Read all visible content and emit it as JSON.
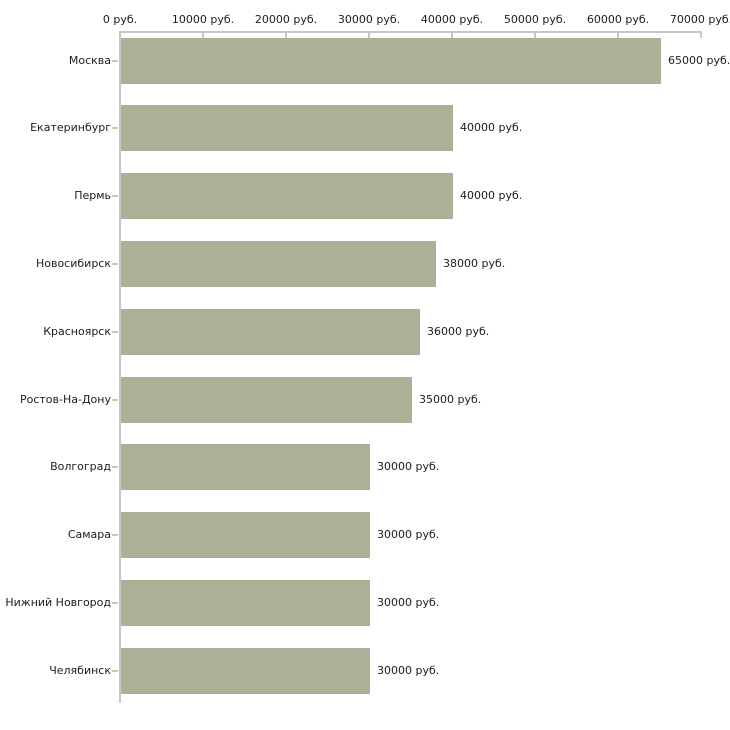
{
  "chart_data": {
    "type": "bar",
    "orientation": "horizontal",
    "categories": [
      "Москва",
      "Екатеринбург",
      "Пермь",
      "Новосибирск",
      "Красноярск",
      "Ростов-На-Дону",
      "Волгоград",
      "Самара",
      "Нижний Новгород",
      "Челябинск"
    ],
    "values": [
      65000,
      40000,
      40000,
      38000,
      36000,
      35000,
      30000,
      30000,
      30000,
      30000
    ],
    "value_labels": [
      "65000 руб.",
      "40000 руб.",
      "40000 руб.",
      "38000 руб.",
      "36000 руб.",
      "35000 руб.",
      "30000 руб.",
      "30000 руб.",
      "30000 руб.",
      "30000 руб."
    ],
    "x_axis": {
      "position": "top",
      "min": 0,
      "max": 70000,
      "ticks": [
        0,
        10000,
        20000,
        30000,
        40000,
        50000,
        60000,
        70000
      ],
      "tick_labels": [
        "0 руб.",
        "10000 руб.",
        "20000 руб.",
        "30000 руб.",
        "40000 руб.",
        "50000 руб.",
        "60000 руб.",
        "70000 руб."
      ]
    },
    "unit": "руб.",
    "grid": false,
    "legend": false,
    "colors": {
      "bar": "#abb096",
      "axis_line": "#c6c6c6",
      "tick": "#cfc9a2",
      "text": "#1c1c1c",
      "background": "#ffffff"
    }
  }
}
